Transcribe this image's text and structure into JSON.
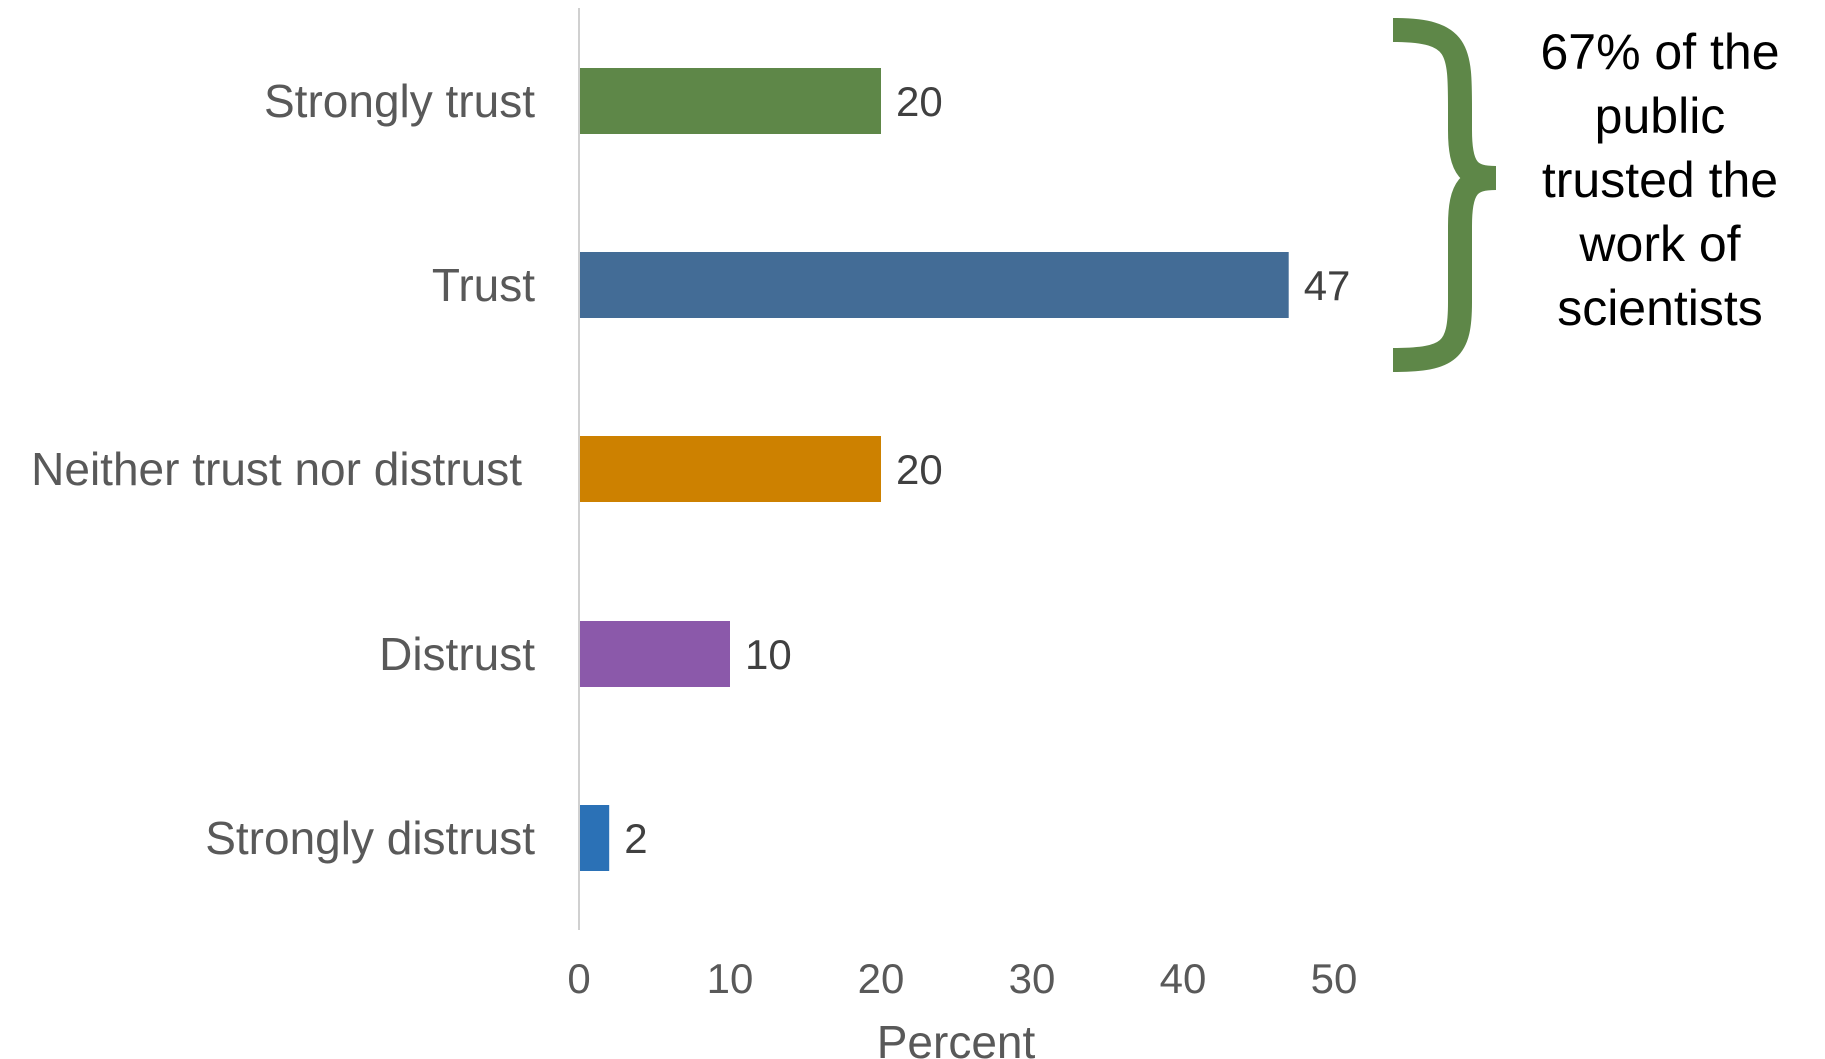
{
  "chart_data": {
    "type": "bar",
    "orientation": "horizontal",
    "categories": [
      "Strongly trust",
      "Trust",
      "Neither trust nor distrust",
      "Distrust",
      "Strongly distrust"
    ],
    "values": [
      20,
      47,
      20,
      10,
      2
    ],
    "value_labels": [
      "20",
      "47",
      "20",
      "10",
      "2"
    ],
    "colors": [
      "#5e8748",
      "#436c96",
      "#cd8100",
      "#8b59aa",
      "#2b71b6"
    ],
    "xlabel": "Percent",
    "xlim": [
      0,
      50
    ],
    "xticks": [
      "0",
      "10",
      "20",
      "30",
      "40",
      "50"
    ],
    "grid": false,
    "annotation": {
      "text": "67% of the public trusted the work of scientists",
      "lines": [
        "67% of the",
        "public",
        "trusted the",
        "work of",
        "scientists"
      ],
      "brace_color": "#5e8748",
      "spans": [
        "Strongly trust",
        "Trust"
      ]
    }
  }
}
